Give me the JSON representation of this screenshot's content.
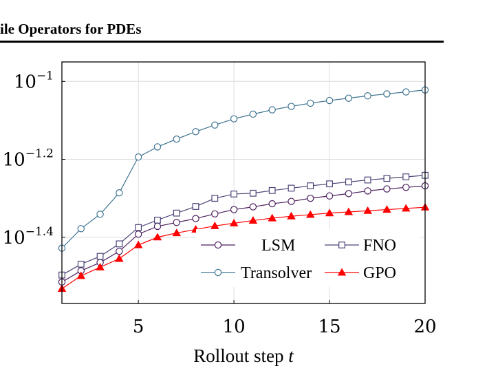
{
  "header": {
    "title": "ile Operators for PDEs"
  },
  "colors": {
    "lsm": "#4b1e5e",
    "fno": "#4a4477",
    "transolver": "#3e7391",
    "gpo": "#ff0000",
    "grid": "#dcdcdc"
  },
  "chart_data": {
    "type": "line",
    "xlabel": "Rollout step t",
    "ylabel": "",
    "y_scale": "log",
    "grid": true,
    "legend_position": "bottom-right",
    "xlim": [
      1,
      20
    ],
    "ylim_log10": [
      -1.57,
      -0.95
    ],
    "x_ticks": [
      5,
      10,
      15,
      20
    ],
    "y_ticks_log10": [
      -1,
      -1.2,
      -1.4
    ],
    "y_tick_labels": [
      {
        "base": "10",
        "exp": "−1"
      },
      {
        "base": "10",
        "exp": "−1.2"
      },
      {
        "base": "10",
        "exp": "−1.4"
      }
    ],
    "x": [
      1,
      2,
      3,
      4,
      5,
      6,
      7,
      8,
      9,
      10,
      11,
      12,
      13,
      14,
      15,
      16,
      17,
      18,
      19,
      20
    ],
    "series": [
      {
        "name": "LSM",
        "color": "#4b1e5e",
        "marker": "circle",
        "values_log10": [
          -1.515,
          -1.486,
          -1.465,
          -1.436,
          -1.392,
          -1.372,
          -1.362,
          -1.352,
          -1.34,
          -1.329,
          -1.322,
          -1.314,
          -1.308,
          -1.3,
          -1.294,
          -1.288,
          -1.281,
          -1.276,
          -1.272,
          -1.268
        ]
      },
      {
        "name": "FNO",
        "color": "#4a4477",
        "marker": "square",
        "values_log10": [
          -1.497,
          -1.469,
          -1.449,
          -1.417,
          -1.375,
          -1.356,
          -1.338,
          -1.321,
          -1.3,
          -1.289,
          -1.287,
          -1.28,
          -1.274,
          -1.268,
          -1.263,
          -1.258,
          -1.253,
          -1.249,
          -1.245,
          -1.241
        ]
      },
      {
        "name": "Transolver",
        "color": "#3e7391",
        "marker": "circle",
        "values_log10": [
          -1.428,
          -1.378,
          -1.341,
          -1.286,
          -1.194,
          -1.168,
          -1.148,
          -1.129,
          -1.112,
          -1.096,
          -1.084,
          -1.073,
          -1.064,
          -1.056,
          -1.049,
          -1.043,
          -1.037,
          -1.032,
          -1.027,
          -1.022
        ]
      },
      {
        "name": "GPO",
        "color": "#ff0000",
        "marker": "triangle",
        "values_log10": [
          -1.532,
          -1.499,
          -1.477,
          -1.455,
          -1.42,
          -1.4,
          -1.389,
          -1.38,
          -1.371,
          -1.364,
          -1.357,
          -1.351,
          -1.346,
          -1.342,
          -1.338,
          -1.335,
          -1.332,
          -1.329,
          -1.326,
          -1.323
        ]
      }
    ]
  }
}
